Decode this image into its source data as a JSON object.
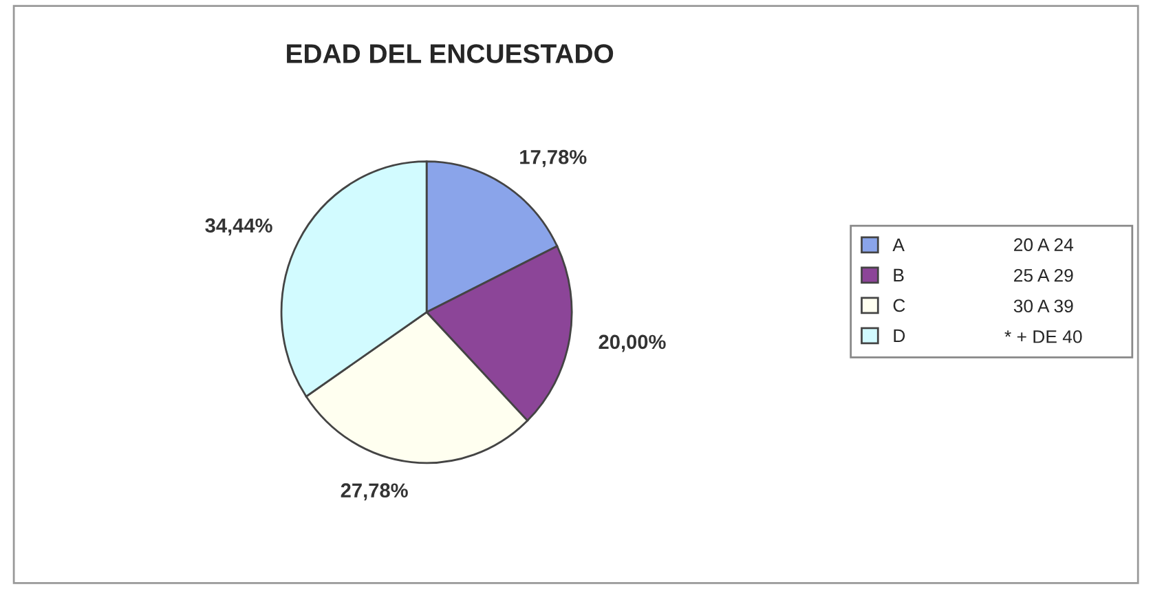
{
  "chart_data": {
    "type": "pie",
    "title": "EDAD DEL ENCUESTADO",
    "categories": [
      "A",
      "B",
      "C",
      "D"
    ],
    "values": [
      17.78,
      20.0,
      27.78,
      34.44
    ],
    "value_labels": [
      "17,78%",
      "20,00%",
      "27,78%",
      "34,44%"
    ],
    "colors": [
      "#8aa4ea",
      "#8c4598",
      "#fffff0",
      "#d2fbff"
    ],
    "annotations": [
      "20 A 24",
      "25 A 29",
      "30 A 39",
      "* + DE 40"
    ],
    "legend": "right"
  }
}
